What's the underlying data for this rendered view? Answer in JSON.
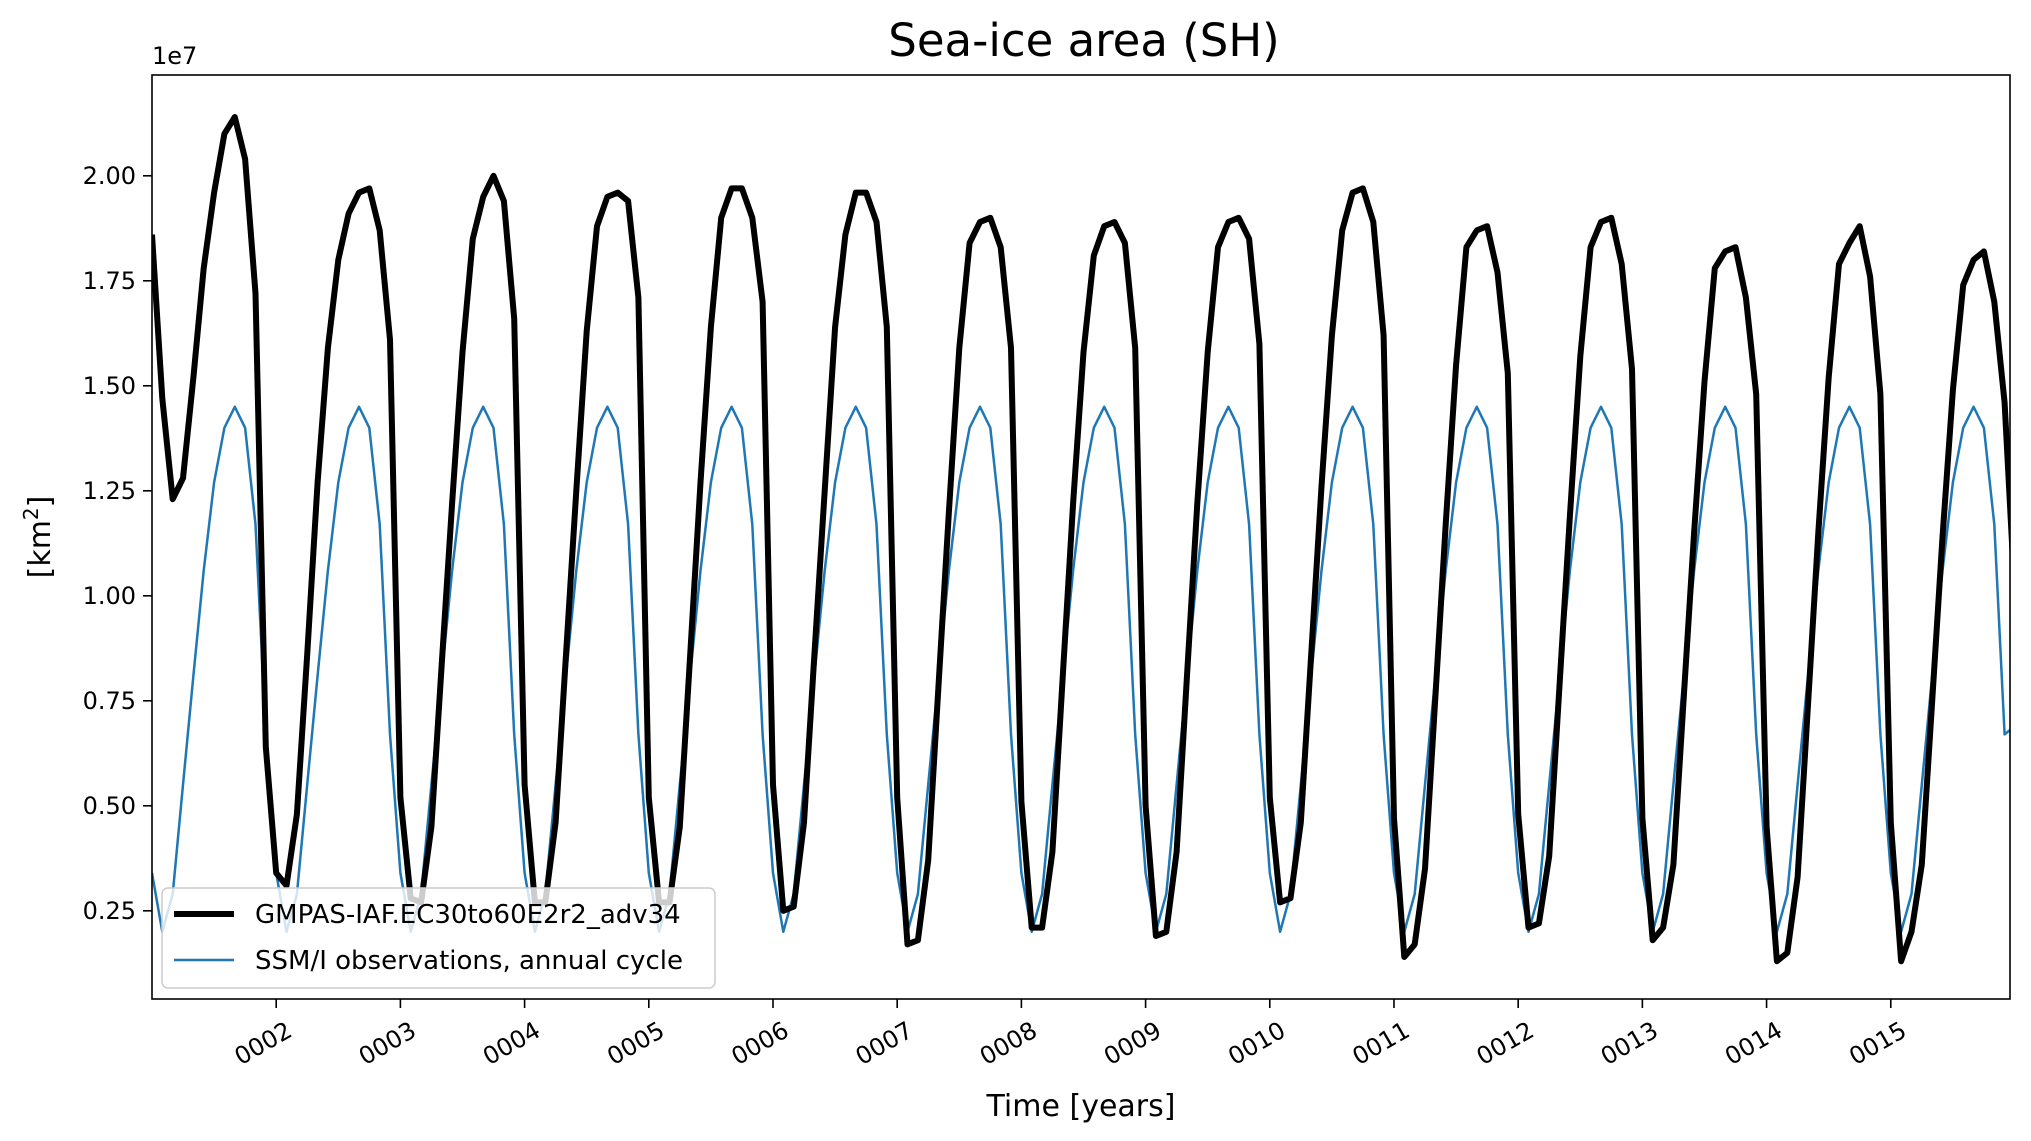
{
  "chart_data": {
    "type": "line",
    "title": "Sea-ice area (SH)",
    "xlabel": "Time [years]",
    "ylabel": "[km",
    "ylabel_superscript": "2",
    "ylabel_close": "]",
    "offset_text": "1e7",
    "y_multiplier": 10000000,
    "xlim": [
      1.0,
      15.96
    ],
    "ylim": [
      0.04,
      2.24
    ],
    "x_ticks": [
      {
        "value": 2,
        "label": "0002"
      },
      {
        "value": 3,
        "label": "0003"
      },
      {
        "value": 4,
        "label": "0004"
      },
      {
        "value": 5,
        "label": "0005"
      },
      {
        "value": 6,
        "label": "0006"
      },
      {
        "value": 7,
        "label": "0007"
      },
      {
        "value": 8,
        "label": "0008"
      },
      {
        "value": 9,
        "label": "0009"
      },
      {
        "value": 10,
        "label": "0010"
      },
      {
        "value": 11,
        "label": "0011"
      },
      {
        "value": 12,
        "label": "0012"
      },
      {
        "value": 13,
        "label": "0013"
      },
      {
        "value": 14,
        "label": "0014"
      },
      {
        "value": 15,
        "label": "0015"
      }
    ],
    "y_ticks": [
      {
        "value": 0.25,
        "label": "0.25"
      },
      {
        "value": 0.5,
        "label": "0.50"
      },
      {
        "value": 0.75,
        "label": "0.75"
      },
      {
        "value": 1.0,
        "label": "1.00"
      },
      {
        "value": 1.25,
        "label": "1.25"
      },
      {
        "value": 1.5,
        "label": "1.50"
      },
      {
        "value": 1.75,
        "label": "1.75"
      },
      {
        "value": 2.0,
        "label": "2.00"
      }
    ],
    "legend_position": "lower-left",
    "x_start": 1.0,
    "x_step_months": 1,
    "series": [
      {
        "name": "GMPAS-IAF.EC30to60E2r2_adv34",
        "color": "#000000",
        "style": "thick",
        "values": [
          1.86,
          1.47,
          1.23,
          1.28,
          1.52,
          1.78,
          1.96,
          2.1,
          2.14,
          2.04,
          1.72,
          0.64,
          0.34,
          0.31,
          0.48,
          0.86,
          1.27,
          1.59,
          1.8,
          1.91,
          1.96,
          1.97,
          1.87,
          1.61,
          0.52,
          0.28,
          0.27,
          0.45,
          0.84,
          1.22,
          1.58,
          1.85,
          1.95,
          2.0,
          1.94,
          1.66,
          0.55,
          0.27,
          0.27,
          0.46,
          0.86,
          1.25,
          1.63,
          1.88,
          1.95,
          1.96,
          1.94,
          1.71,
          0.52,
          0.27,
          0.27,
          0.45,
          0.86,
          1.27,
          1.64,
          1.9,
          1.97,
          1.97,
          1.9,
          1.7,
          0.55,
          0.25,
          0.26,
          0.46,
          0.86,
          1.25,
          1.64,
          1.86,
          1.96,
          1.96,
          1.89,
          1.64,
          0.52,
          0.17,
          0.18,
          0.37,
          0.79,
          1.2,
          1.59,
          1.84,
          1.89,
          1.9,
          1.83,
          1.59,
          0.51,
          0.21,
          0.21,
          0.39,
          0.81,
          1.22,
          1.58,
          1.81,
          1.88,
          1.89,
          1.84,
          1.59,
          0.5,
          0.19,
          0.2,
          0.39,
          0.81,
          1.22,
          1.58,
          1.83,
          1.89,
          1.9,
          1.85,
          1.6,
          0.52,
          0.27,
          0.28,
          0.46,
          0.86,
          1.26,
          1.62,
          1.87,
          1.96,
          1.97,
          1.89,
          1.62,
          0.47,
          0.14,
          0.17,
          0.35,
          0.76,
          1.17,
          1.55,
          1.83,
          1.87,
          1.88,
          1.77,
          1.53,
          0.48,
          0.21,
          0.22,
          0.38,
          0.79,
          1.19,
          1.57,
          1.83,
          1.89,
          1.9,
          1.79,
          1.54,
          0.47,
          0.18,
          0.21,
          0.36,
          0.76,
          1.15,
          1.51,
          1.78,
          1.82,
          1.83,
          1.71,
          1.48,
          0.45,
          0.13,
          0.15,
          0.33,
          0.74,
          1.15,
          1.52,
          1.79,
          1.84,
          1.88,
          1.76,
          1.48,
          0.46,
          0.13,
          0.2,
          0.36,
          0.75,
          1.14,
          1.49,
          1.74,
          1.8,
          1.82,
          1.7,
          1.46,
          0.99
        ]
      },
      {
        "name": "SSM/I observations, annual cycle",
        "color": "#1f77b4",
        "style": "thin",
        "values": [
          0.34,
          0.2,
          0.29,
          0.55,
          0.81,
          1.06,
          1.27,
          1.4,
          1.45,
          1.4,
          1.17,
          0.67,
          0.34,
          0.2,
          0.29,
          0.55,
          0.81,
          1.06,
          1.27,
          1.4,
          1.45,
          1.4,
          1.17,
          0.67,
          0.34,
          0.2,
          0.29,
          0.55,
          0.81,
          1.06,
          1.27,
          1.4,
          1.45,
          1.4,
          1.17,
          0.67,
          0.34,
          0.2,
          0.29,
          0.55,
          0.81,
          1.06,
          1.27,
          1.4,
          1.45,
          1.4,
          1.17,
          0.67,
          0.34,
          0.2,
          0.29,
          0.55,
          0.81,
          1.06,
          1.27,
          1.4,
          1.45,
          1.4,
          1.17,
          0.67,
          0.34,
          0.2,
          0.29,
          0.55,
          0.81,
          1.06,
          1.27,
          1.4,
          1.45,
          1.4,
          1.17,
          0.67,
          0.34,
          0.2,
          0.29,
          0.55,
          0.81,
          1.06,
          1.27,
          1.4,
          1.45,
          1.4,
          1.17,
          0.67,
          0.34,
          0.2,
          0.29,
          0.55,
          0.81,
          1.06,
          1.27,
          1.4,
          1.45,
          1.4,
          1.17,
          0.67,
          0.34,
          0.2,
          0.29,
          0.55,
          0.81,
          1.06,
          1.27,
          1.4,
          1.45,
          1.4,
          1.17,
          0.67,
          0.34,
          0.2,
          0.29,
          0.55,
          0.81,
          1.06,
          1.27,
          1.4,
          1.45,
          1.4,
          1.17,
          0.67,
          0.34,
          0.2,
          0.29,
          0.55,
          0.81,
          1.06,
          1.27,
          1.4,
          1.45,
          1.4,
          1.17,
          0.67,
          0.34,
          0.2,
          0.29,
          0.55,
          0.81,
          1.06,
          1.27,
          1.4,
          1.45,
          1.4,
          1.17,
          0.67,
          0.34,
          0.2,
          0.29,
          0.55,
          0.81,
          1.06,
          1.27,
          1.4,
          1.45,
          1.4,
          1.17,
          0.67,
          0.34,
          0.2,
          0.29,
          0.55,
          0.81,
          1.06,
          1.27,
          1.4,
          1.45,
          1.4,
          1.17,
          0.67,
          0.34,
          0.2,
          0.29,
          0.55,
          0.81,
          1.06,
          1.27,
          1.4,
          1.45,
          1.4,
          1.17,
          0.67,
          0.69
        ]
      }
    ]
  }
}
